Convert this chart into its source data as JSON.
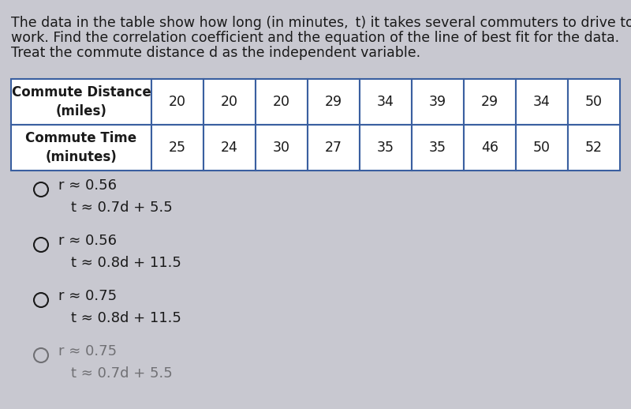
{
  "background_color": "#c8c8d0",
  "table_bg": "#ffffff",
  "paragraph_text_lines": [
    "The data in the table show how long (in minutes,  t) it takes several commuters to drive to",
    "work. Find the correlation coefficient and the equation of the line of best fit for the data.",
    "Treat the commute distance d as the independent variable."
  ],
  "table": {
    "row1_header": "Commute Distance\n(miles)",
    "row1_values": [
      "20",
      "20",
      "20",
      "29",
      "34",
      "39",
      "29",
      "34",
      "50"
    ],
    "row2_header": "Commute Time\n(minutes)",
    "row2_values": [
      "25",
      "24",
      "30",
      "27",
      "35",
      "35",
      "46",
      "50",
      "52"
    ]
  },
  "options": [
    {
      "line1": "r ≈ 0.56",
      "line2": "t ≈ 0.7d + 5.5",
      "alpha": 1.0
    },
    {
      "line1": "r ≈ 0.56",
      "line2": "t ≈ 0.8d + 11.5",
      "alpha": 1.0
    },
    {
      "line1": "r ≈ 0.75",
      "line2": "t ≈ 0.8d + 11.5",
      "alpha": 1.0
    },
    {
      "line1": "r ≈ 0.75",
      "line2": "t ≈ 0.7d + 5.5",
      "alpha": 0.5
    }
  ],
  "text_color": "#1a1a1a",
  "table_border_color": "#3a5fa0",
  "font_size_paragraph": 12.5,
  "font_size_table_header": 12,
  "font_size_table_data": 12.5,
  "font_size_options": 13
}
